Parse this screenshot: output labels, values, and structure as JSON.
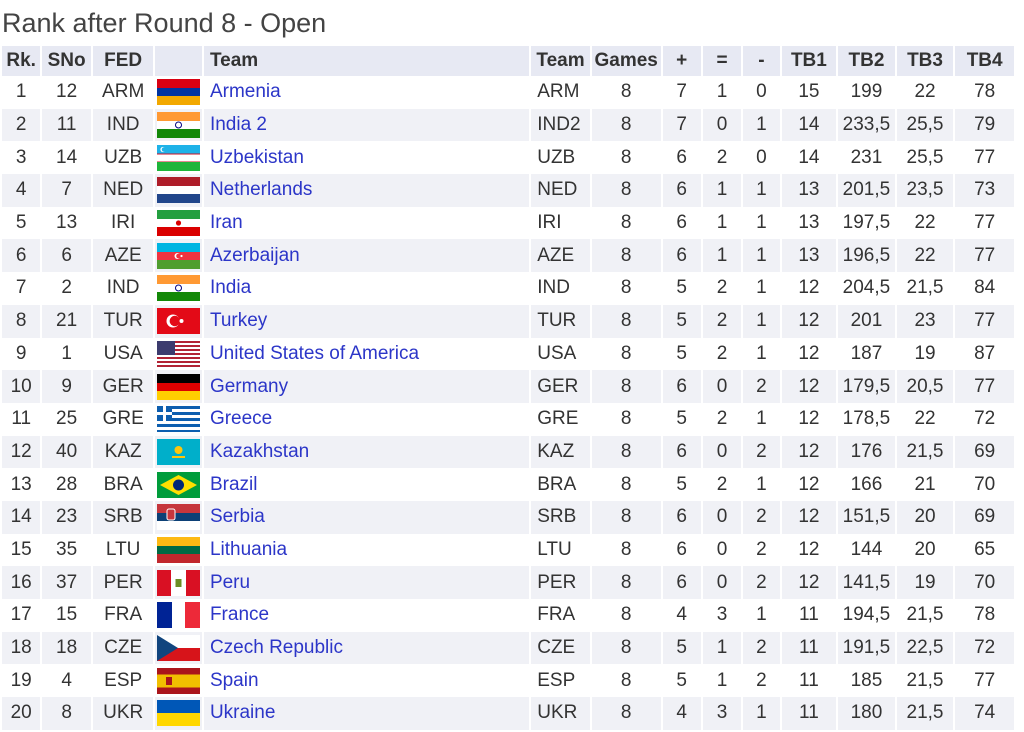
{
  "title": "Rank after Round 8 - Open",
  "columns": [
    "Rk.",
    "SNo",
    "FED",
    "",
    "Team",
    "Team",
    "Games",
    "+",
    "=",
    "-",
    "TB1",
    "TB2",
    "TB3",
    "TB4"
  ],
  "rows": [
    {
      "rk": "1",
      "sno": "12",
      "fed": "ARM",
      "flag": "armenia-flag-icon",
      "team": "Armenia",
      "code": "ARM",
      "games": "8",
      "w": "7",
      "d": "1",
      "l": "0",
      "tb1": "15",
      "tb2": "199",
      "tb3": "22",
      "tb4": "78"
    },
    {
      "rk": "2",
      "sno": "11",
      "fed": "IND",
      "flag": "india-flag-icon",
      "team": "India 2",
      "code": "IND2",
      "games": "8",
      "w": "7",
      "d": "0",
      "l": "1",
      "tb1": "14",
      "tb2": "233,5",
      "tb3": "25,5",
      "tb4": "79"
    },
    {
      "rk": "3",
      "sno": "14",
      "fed": "UZB",
      "flag": "uzbekistan-flag-icon",
      "team": "Uzbekistan",
      "code": "UZB",
      "games": "8",
      "w": "6",
      "d": "2",
      "l": "0",
      "tb1": "14",
      "tb2": "231",
      "tb3": "25,5",
      "tb4": "77"
    },
    {
      "rk": "4",
      "sno": "7",
      "fed": "NED",
      "flag": "netherlands-flag-icon",
      "team": "Netherlands",
      "code": "NED",
      "games": "8",
      "w": "6",
      "d": "1",
      "l": "1",
      "tb1": "13",
      "tb2": "201,5",
      "tb3": "23,5",
      "tb4": "73"
    },
    {
      "rk": "5",
      "sno": "13",
      "fed": "IRI",
      "flag": "iran-flag-icon",
      "team": "Iran",
      "code": "IRI",
      "games": "8",
      "w": "6",
      "d": "1",
      "l": "1",
      "tb1": "13",
      "tb2": "197,5",
      "tb3": "22",
      "tb4": "77"
    },
    {
      "rk": "6",
      "sno": "6",
      "fed": "AZE",
      "flag": "azerbaijan-flag-icon",
      "team": "Azerbaijan",
      "code": "AZE",
      "games": "8",
      "w": "6",
      "d": "1",
      "l": "1",
      "tb1": "13",
      "tb2": "196,5",
      "tb3": "22",
      "tb4": "77"
    },
    {
      "rk": "7",
      "sno": "2",
      "fed": "IND",
      "flag": "india-flag-icon",
      "team": "India",
      "code": "IND",
      "games": "8",
      "w": "5",
      "d": "2",
      "l": "1",
      "tb1": "12",
      "tb2": "204,5",
      "tb3": "21,5",
      "tb4": "84"
    },
    {
      "rk": "8",
      "sno": "21",
      "fed": "TUR",
      "flag": "turkey-flag-icon",
      "team": "Turkey",
      "code": "TUR",
      "games": "8",
      "w": "5",
      "d": "2",
      "l": "1",
      "tb1": "12",
      "tb2": "201",
      "tb3": "23",
      "tb4": "77"
    },
    {
      "rk": "9",
      "sno": "1",
      "fed": "USA",
      "flag": "usa-flag-icon",
      "team": "United States of America",
      "code": "USA",
      "games": "8",
      "w": "5",
      "d": "2",
      "l": "1",
      "tb1": "12",
      "tb2": "187",
      "tb3": "19",
      "tb4": "87"
    },
    {
      "rk": "10",
      "sno": "9",
      "fed": "GER",
      "flag": "germany-flag-icon",
      "team": "Germany",
      "code": "GER",
      "games": "8",
      "w": "6",
      "d": "0",
      "l": "2",
      "tb1": "12",
      "tb2": "179,5",
      "tb3": "20,5",
      "tb4": "77"
    },
    {
      "rk": "11",
      "sno": "25",
      "fed": "GRE",
      "flag": "greece-flag-icon",
      "team": "Greece",
      "code": "GRE",
      "games": "8",
      "w": "5",
      "d": "2",
      "l": "1",
      "tb1": "12",
      "tb2": "178,5",
      "tb3": "22",
      "tb4": "72"
    },
    {
      "rk": "12",
      "sno": "40",
      "fed": "KAZ",
      "flag": "kazakhstan-flag-icon",
      "team": "Kazakhstan",
      "code": "KAZ",
      "games": "8",
      "w": "6",
      "d": "0",
      "l": "2",
      "tb1": "12",
      "tb2": "176",
      "tb3": "21,5",
      "tb4": "69"
    },
    {
      "rk": "13",
      "sno": "28",
      "fed": "BRA",
      "flag": "brazil-flag-icon",
      "team": "Brazil",
      "code": "BRA",
      "games": "8",
      "w": "5",
      "d": "2",
      "l": "1",
      "tb1": "12",
      "tb2": "166",
      "tb3": "21",
      "tb4": "70"
    },
    {
      "rk": "14",
      "sno": "23",
      "fed": "SRB",
      "flag": "serbia-flag-icon",
      "team": "Serbia",
      "code": "SRB",
      "games": "8",
      "w": "6",
      "d": "0",
      "l": "2",
      "tb1": "12",
      "tb2": "151,5",
      "tb3": "20",
      "tb4": "69"
    },
    {
      "rk": "15",
      "sno": "35",
      "fed": "LTU",
      "flag": "lithuania-flag-icon",
      "team": "Lithuania",
      "code": "LTU",
      "games": "8",
      "w": "6",
      "d": "0",
      "l": "2",
      "tb1": "12",
      "tb2": "144",
      "tb3": "20",
      "tb4": "65"
    },
    {
      "rk": "16",
      "sno": "37",
      "fed": "PER",
      "flag": "peru-flag-icon",
      "team": "Peru",
      "code": "PER",
      "games": "8",
      "w": "6",
      "d": "0",
      "l": "2",
      "tb1": "12",
      "tb2": "141,5",
      "tb3": "19",
      "tb4": "70"
    },
    {
      "rk": "17",
      "sno": "15",
      "fed": "FRA",
      "flag": "france-flag-icon",
      "team": "France",
      "code": "FRA",
      "games": "8",
      "w": "4",
      "d": "3",
      "l": "1",
      "tb1": "11",
      "tb2": "194,5",
      "tb3": "21,5",
      "tb4": "78"
    },
    {
      "rk": "18",
      "sno": "18",
      "fed": "CZE",
      "flag": "czech-flag-icon",
      "team": "Czech Republic",
      "code": "CZE",
      "games": "8",
      "w": "5",
      "d": "1",
      "l": "2",
      "tb1": "11",
      "tb2": "191,5",
      "tb3": "22,5",
      "tb4": "72"
    },
    {
      "rk": "19",
      "sno": "4",
      "fed": "ESP",
      "flag": "spain-flag-icon",
      "team": "Spain",
      "code": "ESP",
      "games": "8",
      "w": "5",
      "d": "1",
      "l": "2",
      "tb1": "11",
      "tb2": "185",
      "tb3": "21,5",
      "tb4": "77"
    },
    {
      "rk": "20",
      "sno": "8",
      "fed": "UKR",
      "flag": "ukraine-flag-icon",
      "team": "Ukraine",
      "code": "UKR",
      "games": "8",
      "w": "4",
      "d": "3",
      "l": "1",
      "tb1": "11",
      "tb2": "180",
      "tb3": "21,5",
      "tb4": "74"
    }
  ],
  "colors": {
    "link": "#2c36c8",
    "header_bg": "#e7e9f3",
    "stripe_bg": "#f0f1f6"
  }
}
